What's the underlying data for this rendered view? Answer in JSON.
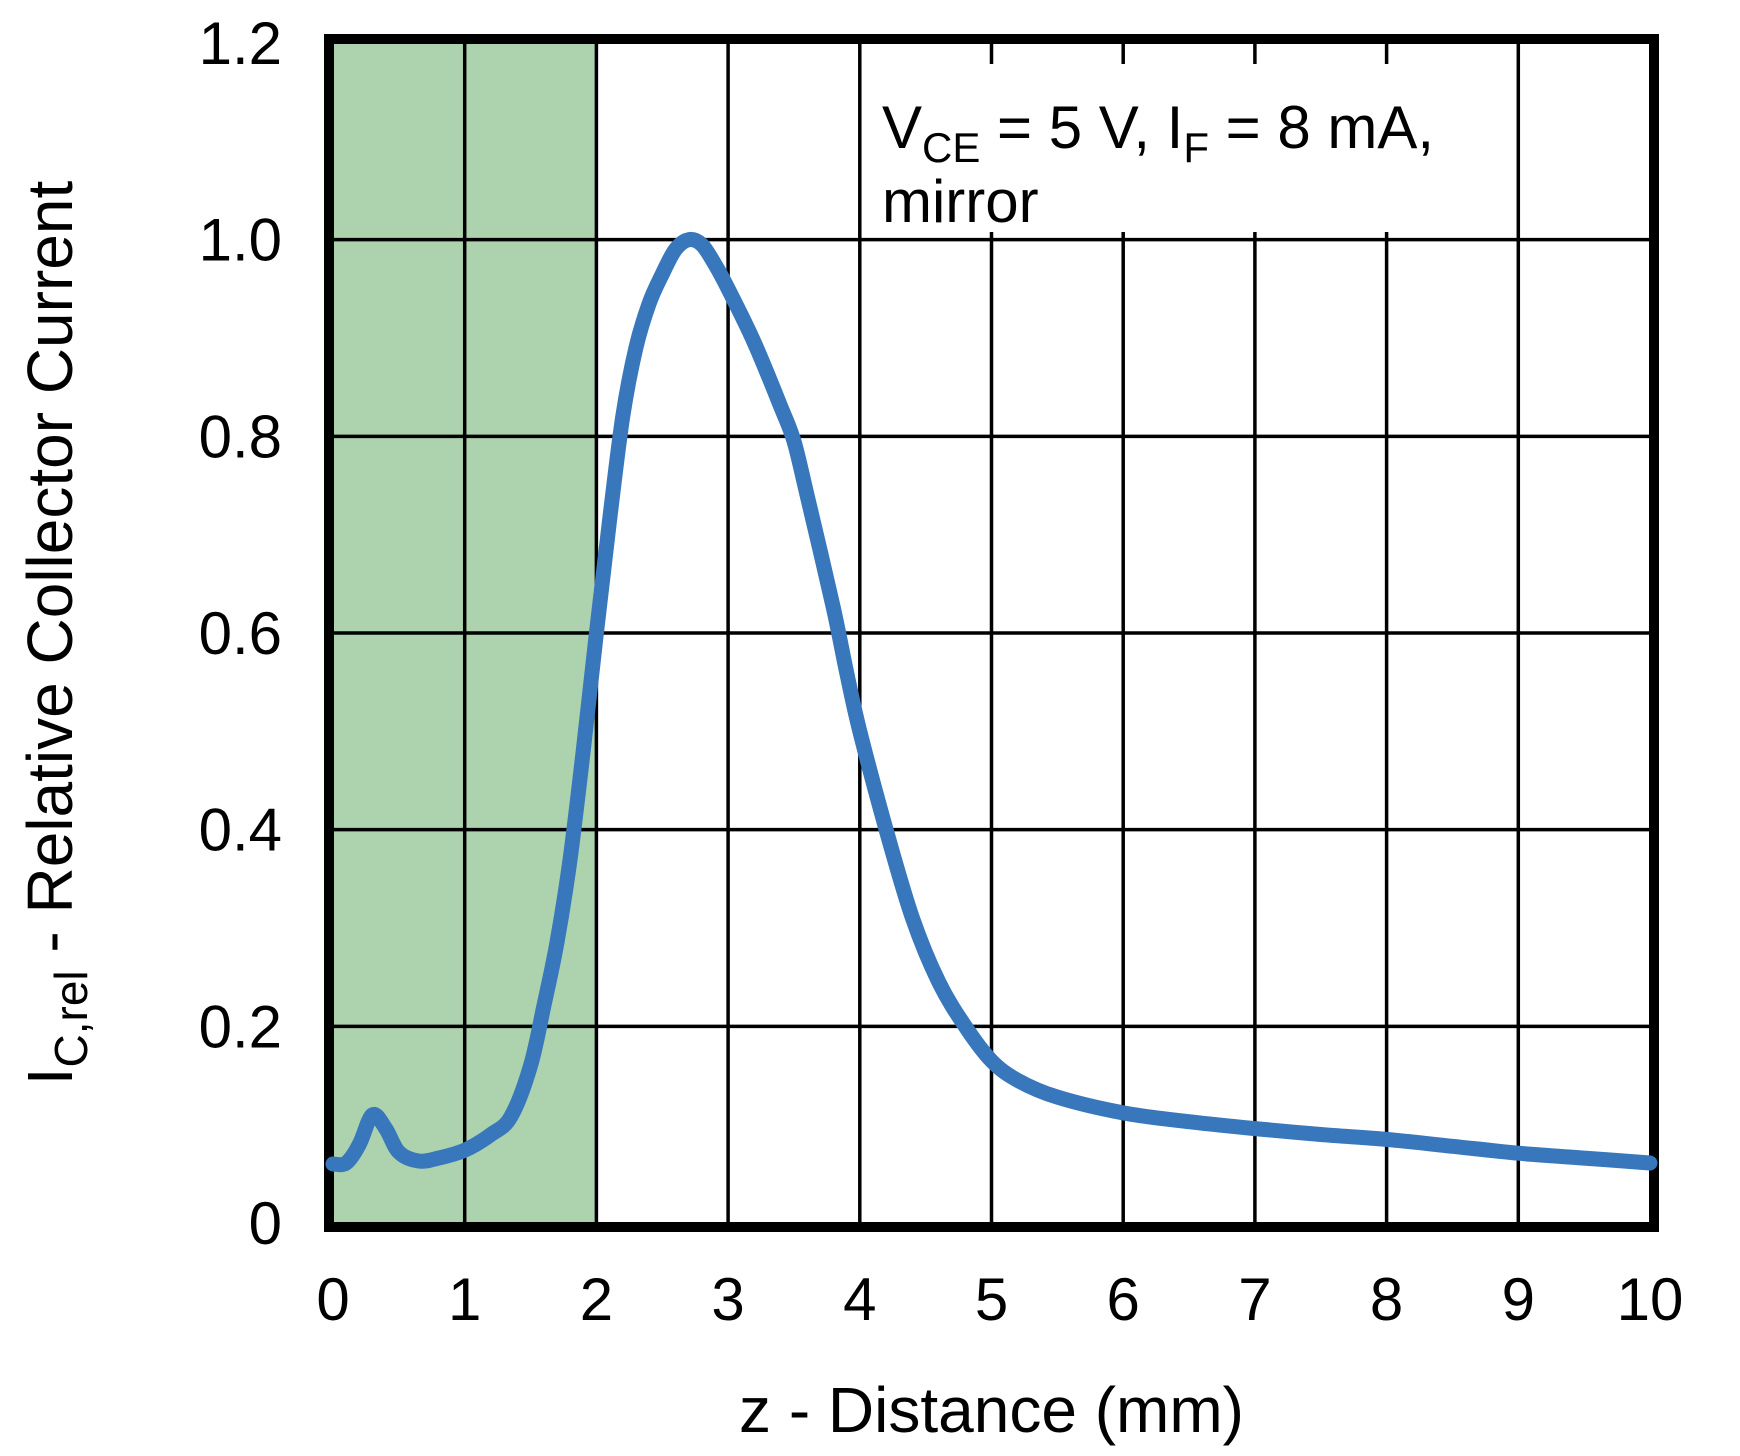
{
  "chart_data": {
    "type": "line",
    "title": "",
    "xlabel": "z - Distance (mm)",
    "ylabel": "I_C,rel - Relative Collector Current",
    "xlabel_segments": [
      {
        "t": "z - Distance (mm)"
      }
    ],
    "ylabel_segments": [
      {
        "t": "I"
      },
      {
        "t": "C,rel",
        "sub": true
      },
      {
        "t": " - Relative Collector Current"
      }
    ],
    "xlim": [
      0,
      10
    ],
    "ylim": [
      0,
      1.2
    ],
    "xticks": [
      0,
      1,
      2,
      3,
      4,
      5,
      6,
      7,
      8,
      9,
      10
    ],
    "xtick_labels": [
      "0",
      "1",
      "2",
      "3",
      "4",
      "5",
      "6",
      "7",
      "8",
      "9",
      "10"
    ],
    "yticks": [
      0,
      0.2,
      0.4,
      0.6,
      0.8,
      1.0,
      1.2
    ],
    "ytick_labels": [
      "0",
      "0.2",
      "0.4",
      "0.6",
      "0.8",
      "1.0",
      "1.2"
    ],
    "grid": true,
    "legend": "none",
    "annotation": {
      "text_plain": "V_CE = 5 V, I_F = 8 mA, mirror",
      "lines": [
        [
          {
            "t": "V"
          },
          {
            "t": "CE",
            "sub": true
          },
          {
            "t": " = 5 V, I"
          },
          {
            "t": "F",
            "sub": true
          },
          {
            "t": " = 8 mA,"
          }
        ],
        [
          {
            "t": "mirror"
          }
        ]
      ]
    },
    "shaded_region": {
      "x_start": 0,
      "x_end": 2,
      "color": "#ADD2AE"
    },
    "series": [
      {
        "name": "relative collector current",
        "color": "#3877BC",
        "x": [
          0,
          0.1,
          0.2,
          0.3,
          0.4,
          0.5,
          0.65,
          0.8,
          1.0,
          1.2,
          1.35,
          1.5,
          1.6,
          1.7,
          1.8,
          1.9,
          2.0,
          2.1,
          2.2,
          2.3,
          2.4,
          2.5,
          2.6,
          2.7,
          2.8,
          2.9,
          3.0,
          3.2,
          3.4,
          3.5,
          3.6,
          3.8,
          3.9,
          4.0,
          4.2,
          4.4,
          4.6,
          4.8,
          5.0,
          5.2,
          5.5,
          6.0,
          6.5,
          7.0,
          7.5,
          8.0,
          8.5,
          9.0,
          9.5,
          10.0
        ],
        "y": [
          0.06,
          0.061,
          0.08,
          0.11,
          0.096,
          0.072,
          0.063,
          0.066,
          0.074,
          0.09,
          0.108,
          0.16,
          0.22,
          0.285,
          0.37,
          0.48,
          0.6,
          0.715,
          0.82,
          0.89,
          0.935,
          0.965,
          0.99,
          1.0,
          0.995,
          0.975,
          0.95,
          0.895,
          0.83,
          0.795,
          0.74,
          0.625,
          0.56,
          0.5,
          0.4,
          0.31,
          0.245,
          0.2,
          0.165,
          0.145,
          0.128,
          0.112,
          0.103,
          0.096,
          0.09,
          0.085,
          0.078,
          0.071,
          0.066,
          0.061
        ]
      }
    ],
    "colors": {
      "curve": "#3877BC",
      "band": "#ADD2AE",
      "grid": "#000000",
      "border": "#000000",
      "text": "#000000",
      "background": "#FFFFFF",
      "annotation_bg": "#FFFFFF"
    }
  }
}
